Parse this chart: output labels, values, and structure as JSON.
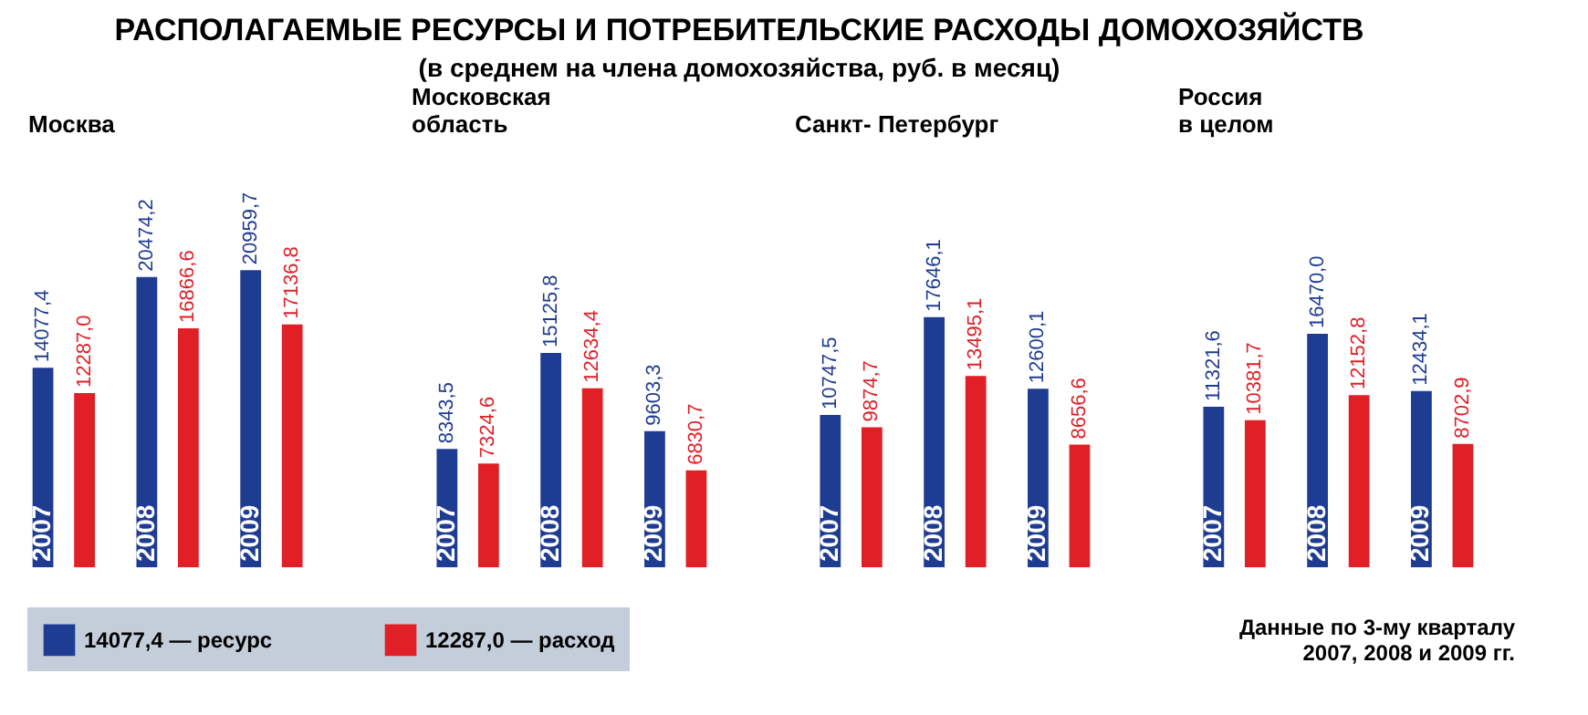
{
  "chart_data": [
    {
      "type": "other",
      "title": "РАСПОЛАГАЕМЫЕ РЕСУРСЫ И ПОТРЕБИТЕЛЬСКИЕ РАСХОДЫ ДОМОХОЗЯЙСТВ",
      "subtitle": "(в среднем на члена домохозяйства, руб. в месяц)"
    },
    {
      "type": "bar",
      "xlabel": "Москва",
      "categories": [
        "2007",
        "2008",
        "2009"
      ],
      "legend": "bottom",
      "tick_labels": false,
      "series": [
        {
          "name": "14077,4 — ресурс",
          "color": "#1f3c93",
          "values": [
            14077.4,
            20474.2,
            20959.7
          ],
          "value_labels": [
            "14077,4",
            "20474,2",
            "20959,7"
          ]
        },
        {
          "name": "12287,0 — расход",
          "color": "#e01f26",
          "values": [
            12287.0,
            16866.6,
            17136.8
          ],
          "value_labels": [
            "12287,0",
            "16866,6",
            "17136,8"
          ]
        }
      ]
    },
    {
      "type": "bar",
      "xlabel": "Московская\nобласть",
      "categories": [
        "2007",
        "2008",
        "2009"
      ],
      "tick_labels": false,
      "series": [
        {
          "color": "#1f3c93",
          "values": [
            8343.5,
            15125.8,
            9603.3
          ],
          "value_labels": [
            "8343,5",
            "15125,8",
            "9603,3"
          ]
        },
        {
          "color": "#e01f26",
          "values": [
            7324.6,
            12634.4,
            6830.7
          ],
          "value_labels": [
            "7324,6",
            "12634,4",
            "6830,7"
          ]
        }
      ]
    },
    {
      "type": "bar",
      "xlabel": "Санкт- Петербург",
      "categories": [
        "2007",
        "2008",
        "2009"
      ],
      "tick_labels": false,
      "series": [
        {
          "color": "#1f3c93",
          "values": [
            10747.5,
            17646.1,
            12600.1
          ],
          "value_labels": [
            "10747,5",
            "17646,1",
            "12600,1"
          ]
        },
        {
          "color": "#e01f26",
          "values": [
            9874.7,
            13495.1,
            8656.6
          ],
          "value_labels": [
            "9874,7",
            "13495,1",
            "8656,6"
          ]
        }
      ]
    },
    {
      "type": "bar",
      "xlabel": "Россия\nв целом",
      "categories": [
        "2007",
        "2008",
        "2009"
      ],
      "tick_labels": false,
      "annotations": [
        "Данные по 3-му кварталу\n2007, 2008 и 2009 гг."
      ],
      "series": [
        {
          "color": "#1f3c93",
          "values": [
            11321.6,
            16470.0,
            12434.1
          ],
          "value_labels": [
            "11321,6",
            "16470,0",
            "12434,1"
          ]
        },
        {
          "color": "#e01f26",
          "values": [
            10381.7,
            12152.8,
            8702.9
          ],
          "value_labels": [
            "10381,7",
            "12152,8",
            "8702,9"
          ]
        }
      ]
    }
  ]
}
